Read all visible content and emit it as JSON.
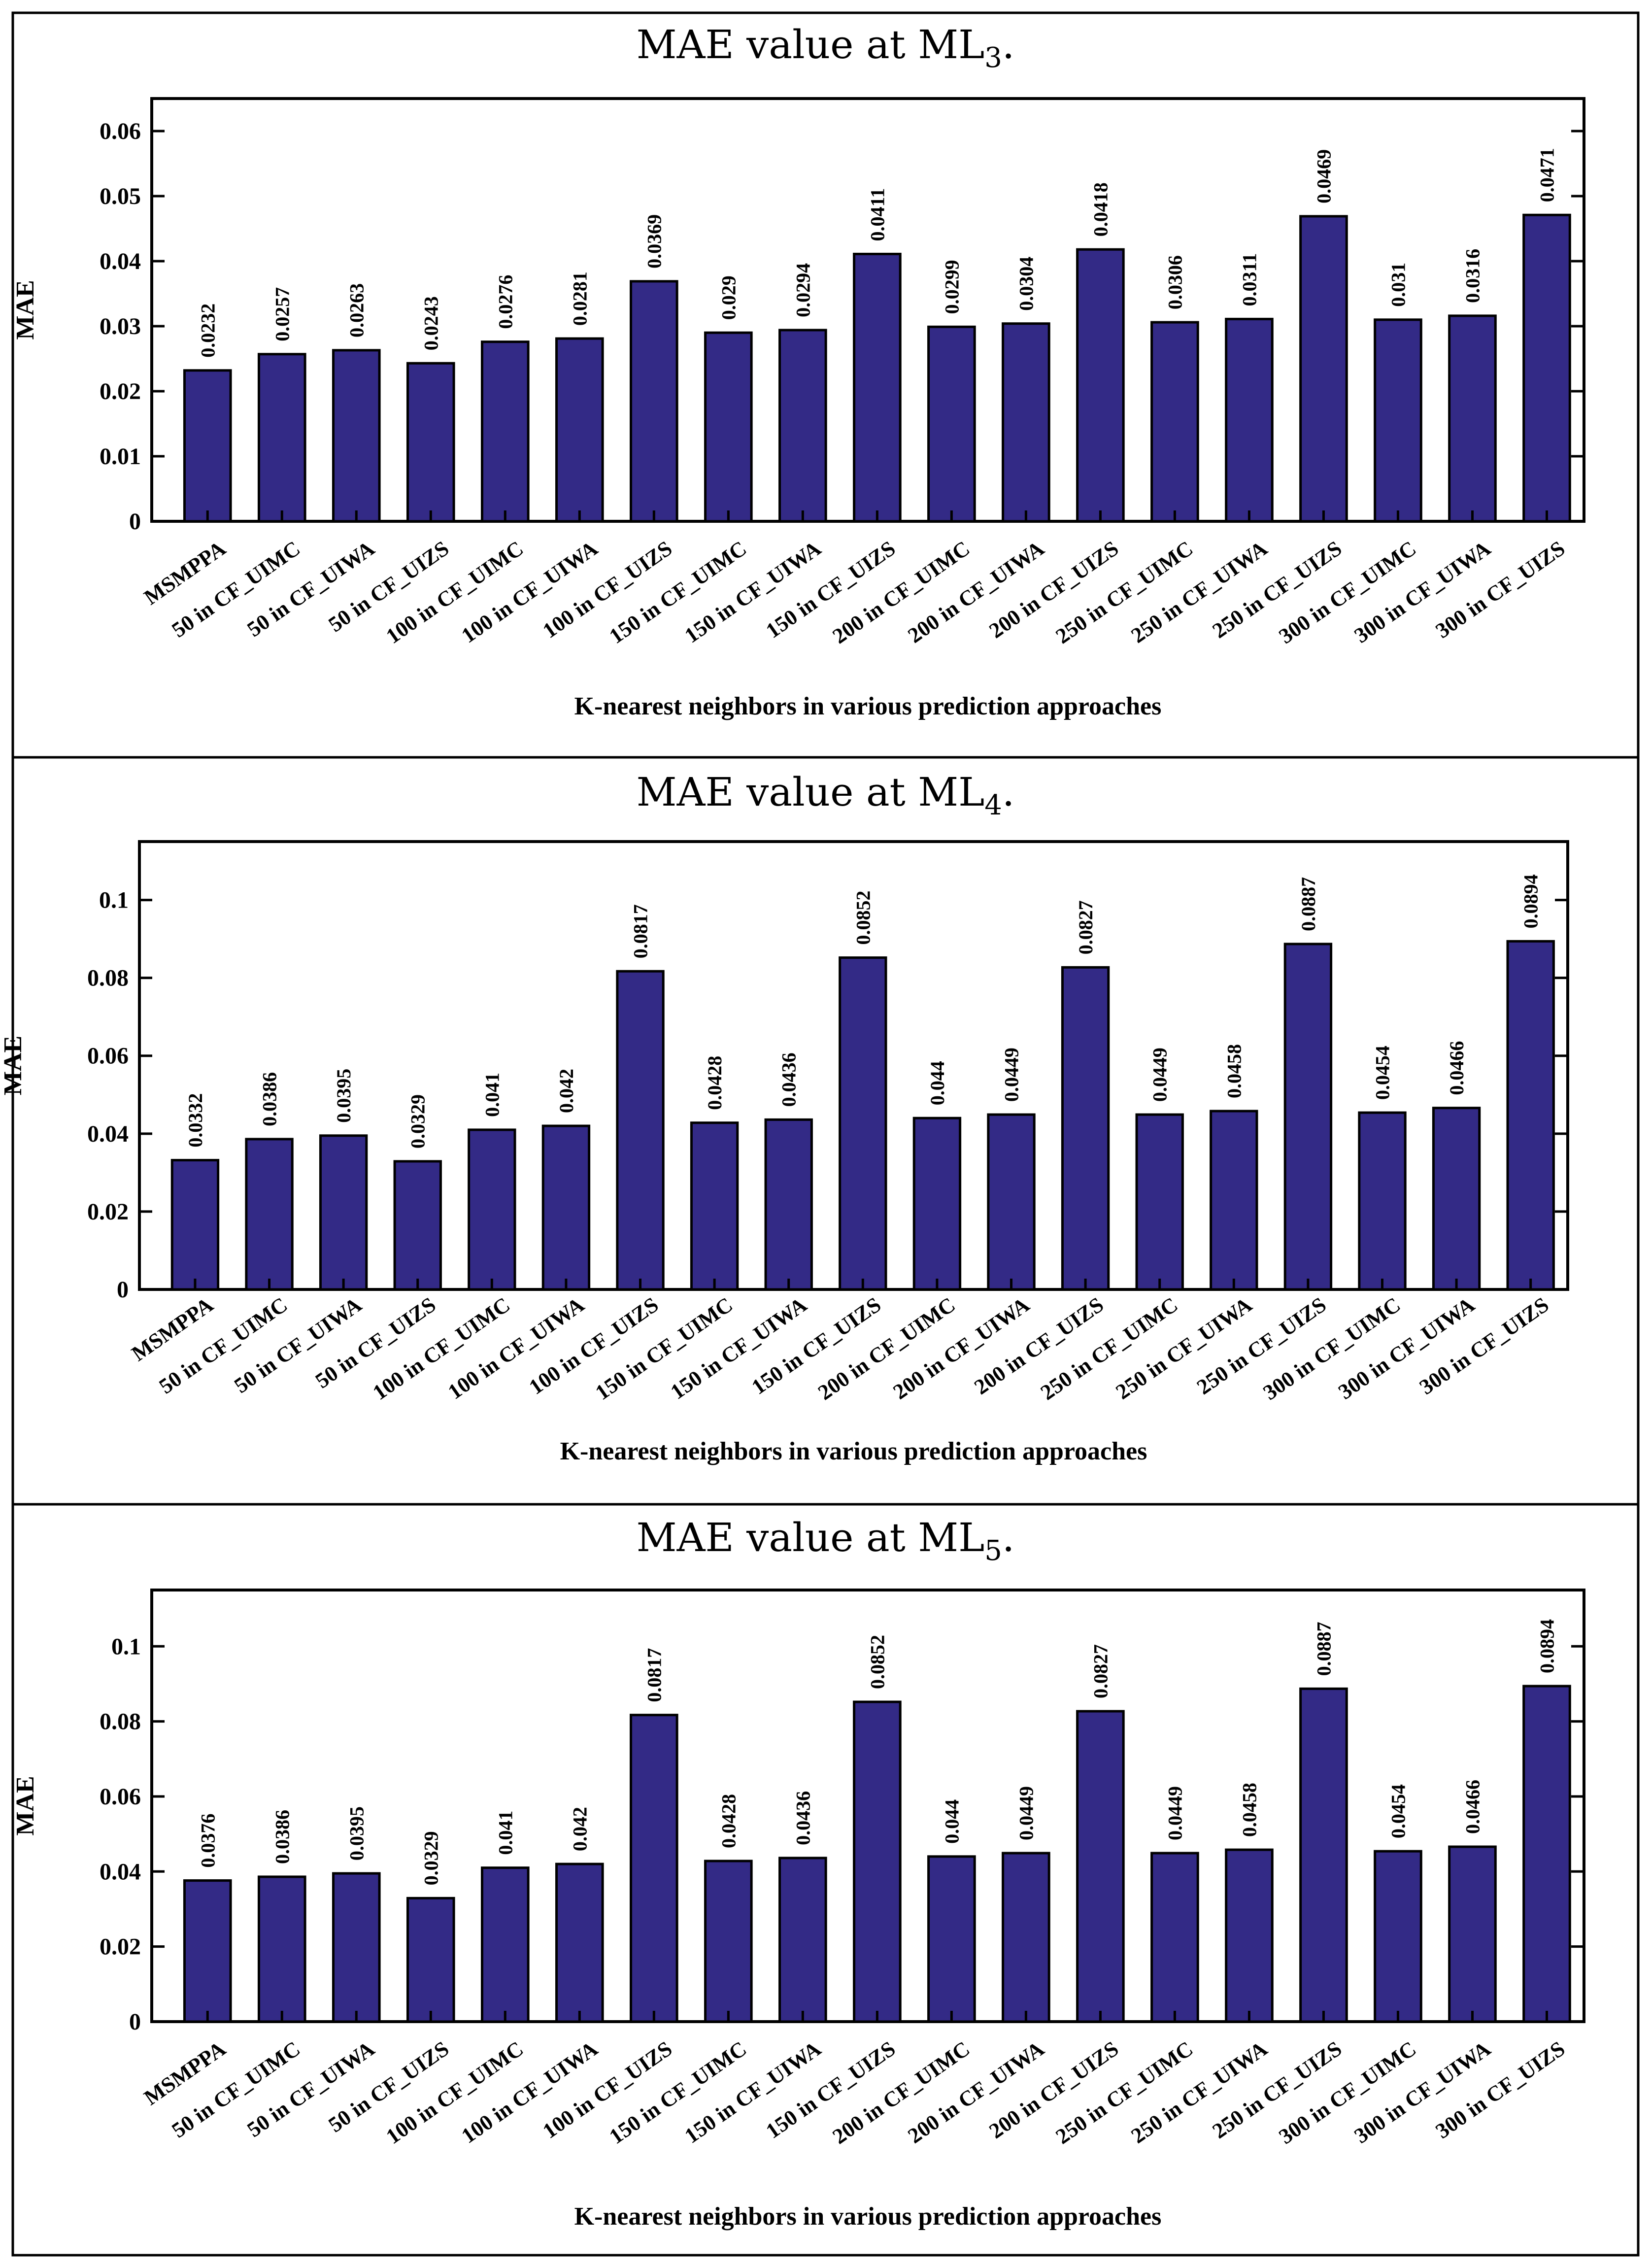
{
  "chart_data": [
    {
      "type": "bar",
      "title": "MAE value at ML",
      "title_subscript": "3",
      "title_suffix": ".",
      "xlabel": "K-nearest neighbors in various prediction approaches",
      "ylabel": "MAE",
      "ylim": [
        0,
        0.065
      ],
      "yticks": [
        0,
        0.01,
        0.02,
        0.03,
        0.04,
        0.05,
        0.06
      ],
      "ytick_labels": [
        "0",
        "0.01",
        "0.02",
        "0.03",
        "0.04",
        "0.05",
        "0.06"
      ],
      "bar_color": "#332a86",
      "categories": [
        "MSMPPA",
        "50 in CF_UIMC",
        "50 in CF_UIWA",
        "50 in CF_UIZS",
        "100 in CF_UIMC",
        "100 in CF_UIWA",
        "100 in CF_UIZS",
        "150 in CF_UIMC",
        "150 in CF_UIWA",
        "150 in CF_UIZS",
        "200 in CF_UIMC",
        "200 in CF_UIWA",
        "200 in CF_UIZS",
        "250 in CF_UIMC",
        "250 in CF_UIWA",
        "250 in CF_UIZS",
        "300 in CF_UIMC",
        "300 in CF_UIWA",
        "300 in CF_UIZS"
      ],
      "values": [
        0.0232,
        0.0257,
        0.0263,
        0.0243,
        0.0276,
        0.0281,
        0.0369,
        0.029,
        0.0294,
        0.0411,
        0.0299,
        0.0304,
        0.0418,
        0.0306,
        0.0311,
        0.0469,
        0.031,
        0.0316,
        0.0471
      ],
      "value_labels": [
        "0.0232",
        "0.0257",
        "0.0263",
        "0.0243",
        "0.0276",
        "0.0281",
        "0.0369",
        "0.029",
        "0.0294",
        "0.0411",
        "0.0299",
        "0.0304",
        "0.0418",
        "0.0306",
        "0.0311",
        "0.0469",
        "0.031",
        "0.0316",
        "0.0471"
      ]
    },
    {
      "type": "bar",
      "title": "MAE value at ML",
      "title_subscript": "4",
      "title_suffix": ".",
      "xlabel": "K-nearest neighbors in various prediction approaches",
      "ylabel": "MAE",
      "ylim": [
        0,
        0.115
      ],
      "yticks": [
        0,
        0.02,
        0.04,
        0.06,
        0.08,
        0.1
      ],
      "ytick_labels": [
        "0",
        "0.02",
        "0.04",
        "0.06",
        "0.08",
        "0.1"
      ],
      "bar_color": "#332a86",
      "categories": [
        "MSMPPA",
        "50 in CF_UIMC",
        "50 in CF_UIWA",
        "50 in CF_UIZS",
        "100 in CF_UIMC",
        "100 in CF_UIWA",
        "100 in CF_UIZS",
        "150 in CF_UIMC",
        "150 in CF_UIWA",
        "150 in CF_UIZS",
        "200 in CF_UIMC",
        "200 in CF_UIWA",
        "200 in CF_UIZS",
        "250 in CF_UIMC",
        "250 in CF_UIWA",
        "250 in CF_UIZS",
        "300 in CF_UIMC",
        "300 in CF_UIWA",
        "300 in CF_UIZS"
      ],
      "values": [
        0.0332,
        0.0386,
        0.0395,
        0.0329,
        0.041,
        0.042,
        0.0817,
        0.0428,
        0.0436,
        0.0852,
        0.044,
        0.0449,
        0.0827,
        0.0449,
        0.0458,
        0.0887,
        0.0454,
        0.0466,
        0.0894
      ],
      "value_labels": [
        "0.0332",
        "0.0386",
        "0.0395",
        "0.0329",
        "0.041",
        "0.042",
        "0.0817",
        "0.0428",
        "0.0436",
        "0.0852",
        "0.044",
        "0.0449",
        "0.0827",
        "0.0449",
        "0.0458",
        "0.0887",
        "0.0454",
        "0.0466",
        "0.0894"
      ]
    },
    {
      "type": "bar",
      "title": "MAE value at ML",
      "title_subscript": "5",
      "title_suffix": ".",
      "xlabel": "K-nearest neighbors in various prediction approaches",
      "ylabel": "MAE",
      "ylim": [
        0,
        0.115
      ],
      "yticks": [
        0,
        0.02,
        0.04,
        0.06,
        0.08,
        0.1
      ],
      "ytick_labels": [
        "0",
        "0.02",
        "0.04",
        "0.06",
        "0.08",
        "0.1"
      ],
      "bar_color": "#332a86",
      "categories": [
        "MSMPPA",
        "50 in CF_UIMC",
        "50 in CF_UIWA",
        "50 in CF_UIZS",
        "100 in CF_UIMC",
        "100 in CF_UIWA",
        "100 in CF_UIZS",
        "150 in CF_UIMC",
        "150 in CF_UIWA",
        "150 in CF_UIZS",
        "200 in CF_UIMC",
        "200 in CF_UIWA",
        "200 in CF_UIZS",
        "250 in CF_UIMC",
        "250 in CF_UIWA",
        "250 in CF_UIZS",
        "300 in CF_UIMC",
        "300 in CF_UIWA",
        "300 in CF_UIZS"
      ],
      "values": [
        0.0376,
        0.0386,
        0.0395,
        0.0329,
        0.041,
        0.042,
        0.0817,
        0.0428,
        0.0436,
        0.0852,
        0.044,
        0.0449,
        0.0827,
        0.0449,
        0.0458,
        0.0887,
        0.0454,
        0.0466,
        0.0894
      ],
      "value_labels": [
        "0.0376",
        "0.0386",
        "0.0395",
        "0.0329",
        "0.041",
        "0.042",
        "0.0817",
        "0.0428",
        "0.0436",
        "0.0852",
        "0.044",
        "0.0449",
        "0.0827",
        "0.0449",
        "0.0458",
        "0.0887",
        "0.0454",
        "0.0466",
        "0.0894"
      ]
    }
  ]
}
